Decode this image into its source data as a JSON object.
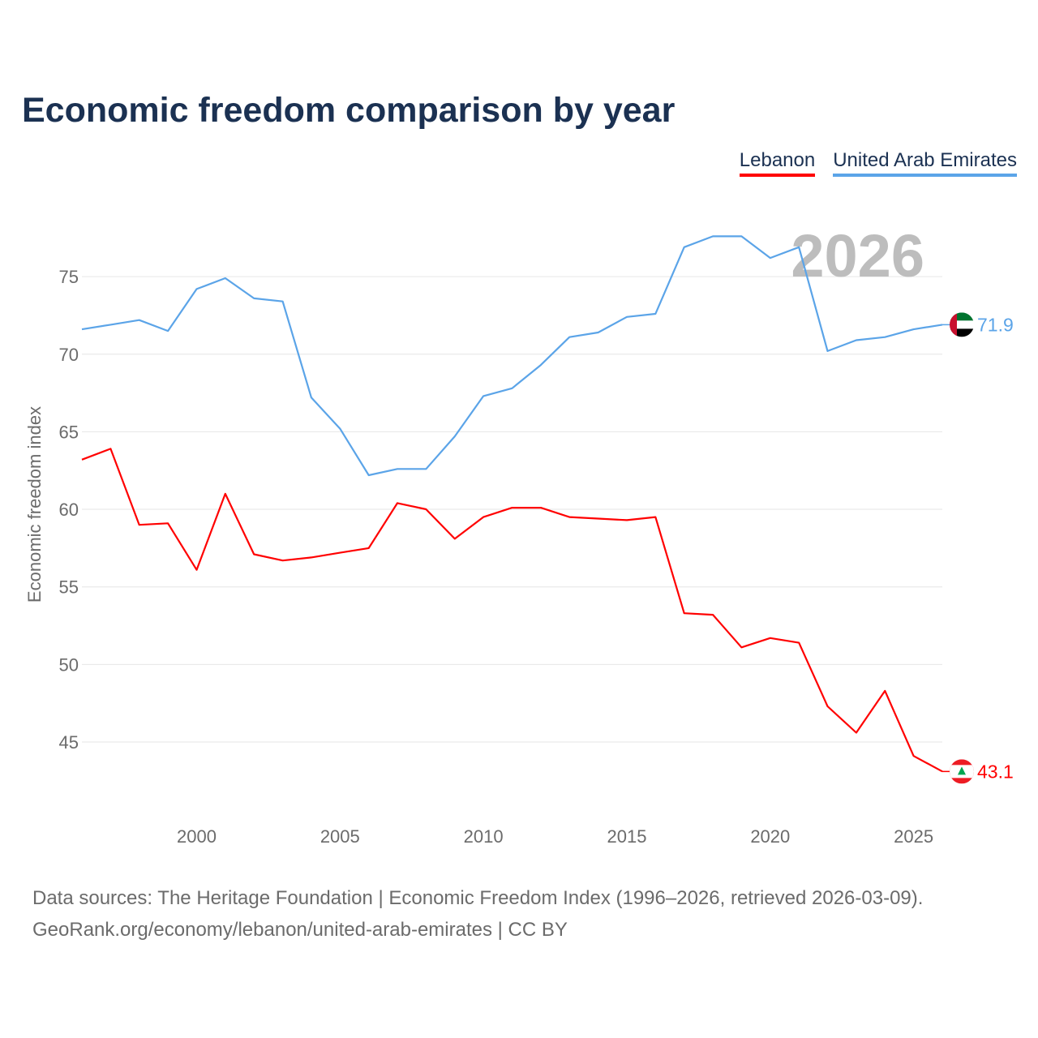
{
  "chart_data": {
    "type": "line",
    "title": "Economic freedom comparison by year",
    "xlabel": "",
    "ylabel": "Economic freedom index",
    "xlim": [
      1996,
      2026
    ],
    "ylim": [
      40.2,
      79.6
    ],
    "x_ticks": [
      2000,
      2005,
      2010,
      2015,
      2020,
      2025
    ],
    "y_ticks": [
      45,
      50,
      55,
      60,
      65,
      70,
      75
    ],
    "grid": true,
    "legend_position": "top-right",
    "year_watermark": "2026",
    "x": [
      1996,
      1997,
      1998,
      1999,
      2000,
      2001,
      2002,
      2003,
      2004,
      2005,
      2006,
      2007,
      2008,
      2009,
      2010,
      2011,
      2012,
      2013,
      2014,
      2015,
      2016,
      2017,
      2018,
      2019,
      2020,
      2021,
      2022,
      2023,
      2024,
      2025,
      2026
    ],
    "series": [
      {
        "name": "Lebanon",
        "color": "#ff0000",
        "end_label": "43.1",
        "values": [
          63.2,
          63.9,
          59.0,
          59.1,
          56.1,
          61.0,
          57.1,
          56.7,
          56.9,
          57.2,
          57.5,
          60.4,
          60.0,
          58.1,
          59.5,
          60.1,
          60.1,
          59.5,
          59.4,
          59.3,
          59.5,
          53.3,
          53.2,
          51.1,
          51.7,
          51.4,
          47.3,
          45.6,
          48.3,
          44.1,
          43.1
        ]
      },
      {
        "name": "United Arab Emirates",
        "color": "#5ba4e8",
        "end_label": "71.9",
        "values": [
          71.6,
          71.9,
          72.2,
          71.5,
          74.2,
          74.9,
          73.6,
          73.4,
          67.2,
          65.2,
          62.2,
          62.6,
          62.6,
          64.7,
          67.3,
          67.8,
          69.3,
          71.1,
          71.4,
          72.4,
          72.6,
          76.9,
          77.6,
          77.6,
          76.2,
          76.9,
          70.2,
          70.9,
          71.1,
          71.6,
          71.9
        ]
      }
    ]
  },
  "footer": {
    "line1": "Data sources: The Heritage Foundation | Economic Freedom Index (1996–2026, retrieved 2026-03-09).",
    "line2": "GeoRank.org/economy/lebanon/united-arab-emirates | CC BY"
  }
}
